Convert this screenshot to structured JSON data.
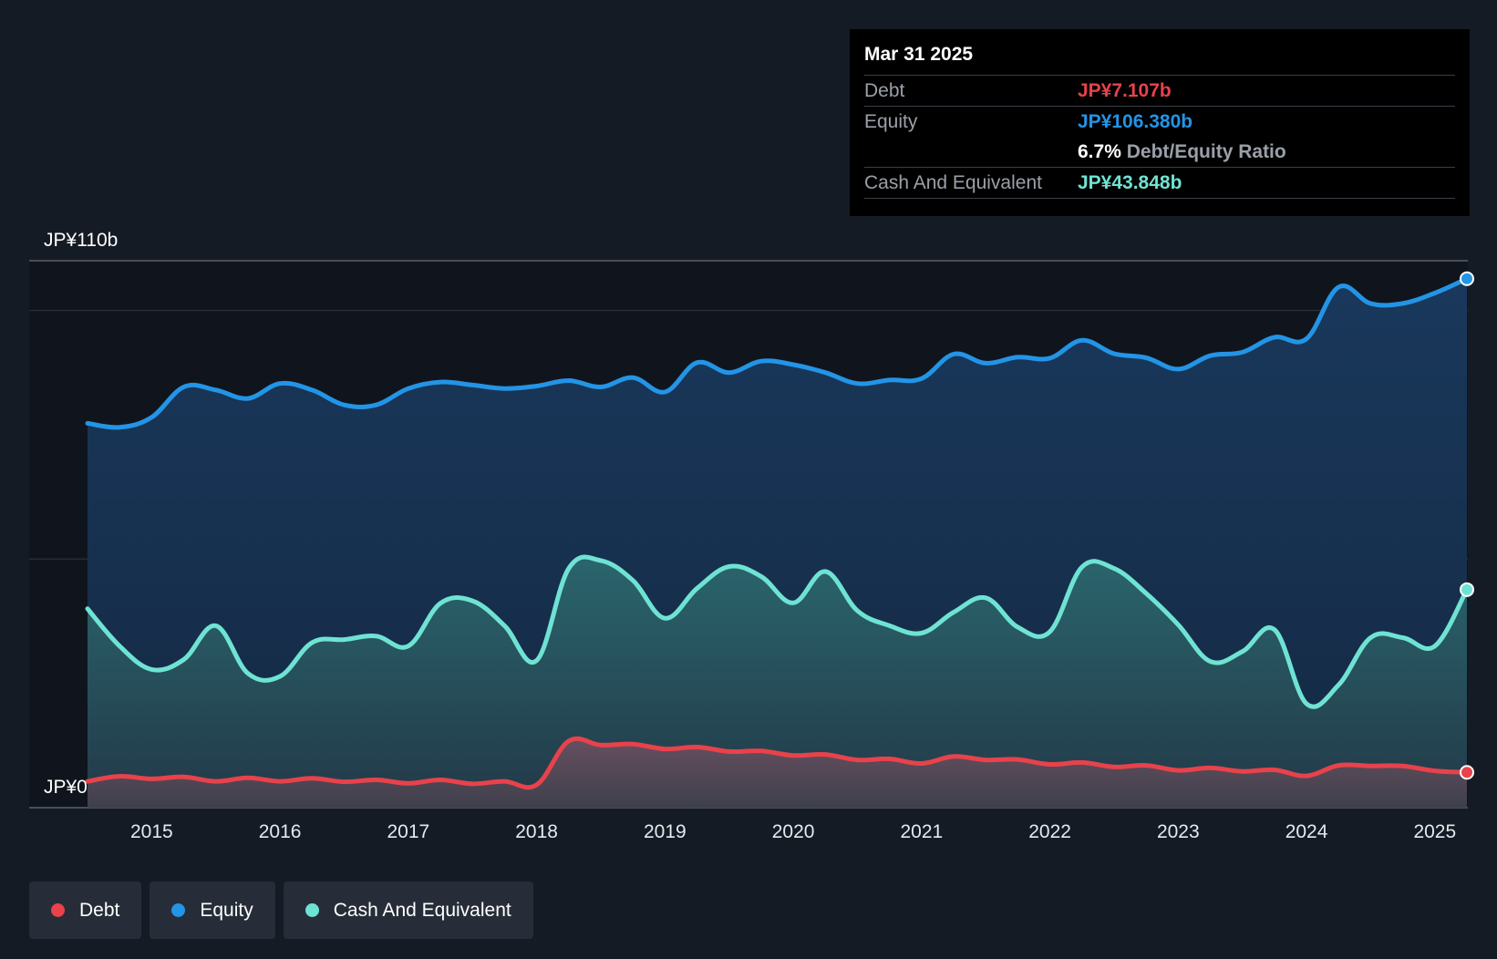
{
  "colors": {
    "debt": "#e8424b",
    "equity": "#2394e6",
    "cash": "#6fe3d3",
    "background": "#151b24",
    "plot_background": "#10151d"
  },
  "tooltip": {
    "date": "Mar 31 2025",
    "debt_label": "Debt",
    "debt_value": "JP¥7.107b",
    "equity_label": "Equity",
    "equity_value": "JP¥106.380b",
    "ratio_value": "6.7%",
    "ratio_label": "Debt/Equity Ratio",
    "cash_label": "Cash And Equivalent",
    "cash_value": "JP¥43.848b"
  },
  "legend": [
    {
      "name": "Debt",
      "color_key": "debt"
    },
    {
      "name": "Equity",
      "color_key": "equity"
    },
    {
      "name": "Cash And Equivalent",
      "color_key": "cash"
    }
  ],
  "chart_data": {
    "type": "area",
    "title": "",
    "xlabel": "",
    "ylabel": "",
    "y_top_label": "JP¥110b",
    "y_bottom_label": "JP¥0",
    "ylim": [
      0,
      110
    ],
    "xlim": [
      2014.5,
      2025.25
    ],
    "x_ticks": [
      2015,
      2016,
      2017,
      2018,
      2019,
      2020,
      2021,
      2022,
      2023,
      2024,
      2025
    ],
    "grid": true,
    "legend_position": "bottom-left",
    "series": [
      {
        "name": "Equity",
        "color_key": "equity",
        "x": [
          2014.5,
          2014.75,
          2015.0,
          2015.25,
          2015.5,
          2015.75,
          2016.0,
          2016.25,
          2016.5,
          2016.75,
          2017.0,
          2017.25,
          2017.5,
          2017.75,
          2018.0,
          2018.25,
          2018.5,
          2018.75,
          2019.0,
          2019.25,
          2019.5,
          2019.75,
          2020.0,
          2020.25,
          2020.5,
          2020.75,
          2021.0,
          2021.25,
          2021.5,
          2021.75,
          2022.0,
          2022.25,
          2022.5,
          2022.75,
          2023.0,
          2023.25,
          2023.5,
          2023.75,
          2024.0,
          2024.25,
          2024.5,
          2024.75,
          2025.0,
          2025.25
        ],
        "values": [
          77.3,
          76.5,
          78.5,
          84.6,
          84.0,
          82.3,
          85.3,
          84.0,
          81.0,
          81.0,
          84.3,
          85.6,
          85.0,
          84.3,
          84.8,
          85.9,
          84.6,
          86.5,
          83.6,
          89.5,
          87.5,
          89.8,
          89.1,
          87.5,
          85.3,
          86.0,
          86.3,
          91.2,
          89.4,
          90.6,
          90.4,
          94.0,
          91.3,
          90.5,
          88.2,
          90.9,
          91.6,
          94.6,
          94.3,
          104.7,
          101.4,
          101.4,
          103.5,
          106.38
        ]
      },
      {
        "name": "Cash And Equivalent",
        "color_key": "cash",
        "x": [
          2014.5,
          2014.75,
          2015.0,
          2015.25,
          2015.5,
          2015.75,
          2016.0,
          2016.25,
          2016.5,
          2016.75,
          2017.0,
          2017.25,
          2017.5,
          2017.75,
          2018.0,
          2018.25,
          2018.5,
          2018.75,
          2019.0,
          2019.25,
          2019.5,
          2019.75,
          2020.0,
          2020.25,
          2020.5,
          2020.75,
          2021.0,
          2021.25,
          2021.5,
          2021.75,
          2022.0,
          2022.25,
          2022.5,
          2022.75,
          2023.0,
          2023.25,
          2023.5,
          2023.75,
          2024.0,
          2024.25,
          2024.5,
          2024.75,
          2025.0,
          2025.25
        ],
        "values": [
          40.0,
          32.5,
          27.8,
          29.8,
          36.6,
          27.0,
          26.4,
          33.2,
          33.8,
          34.5,
          32.5,
          41.1,
          41.6,
          36.6,
          29.6,
          48.1,
          49.7,
          45.7,
          38.1,
          44.1,
          48.5,
          46.5,
          41.2,
          47.5,
          39.6,
          36.6,
          35.1,
          39.3,
          42.2,
          36.3,
          35.4,
          48.4,
          48.1,
          43.1,
          36.8,
          29.4,
          31.4,
          35.8,
          20.9,
          24.7,
          34.2,
          34.2,
          32.5,
          43.848
        ]
      },
      {
        "name": "Debt",
        "color_key": "debt",
        "x": [
          2014.5,
          2014.75,
          2015.0,
          2015.25,
          2015.5,
          2015.75,
          2016.0,
          2016.25,
          2016.5,
          2016.75,
          2017.0,
          2017.25,
          2017.5,
          2017.75,
          2018.0,
          2018.25,
          2018.5,
          2018.75,
          2019.0,
          2019.25,
          2019.5,
          2019.75,
          2020.0,
          2020.25,
          2020.5,
          2020.75,
          2021.0,
          2021.25,
          2021.5,
          2021.75,
          2022.0,
          2022.25,
          2022.5,
          2022.75,
          2023.0,
          2023.25,
          2023.5,
          2023.75,
          2024.0,
          2024.25,
          2024.5,
          2024.75,
          2025.0,
          2025.25
        ],
        "values": [
          5.3,
          6.3,
          5.8,
          6.2,
          5.3,
          6.0,
          5.3,
          5.9,
          5.2,
          5.6,
          4.9,
          5.6,
          4.8,
          5.3,
          4.6,
          13.4,
          12.6,
          12.8,
          11.8,
          12.2,
          11.3,
          11.4,
          10.5,
          10.7,
          9.6,
          9.8,
          8.9,
          10.3,
          9.6,
          9.7,
          8.7,
          9.1,
          8.2,
          8.5,
          7.5,
          8.0,
          7.3,
          7.6,
          6.4,
          8.5,
          8.4,
          8.4,
          7.4,
          7.107
        ]
      }
    ]
  }
}
